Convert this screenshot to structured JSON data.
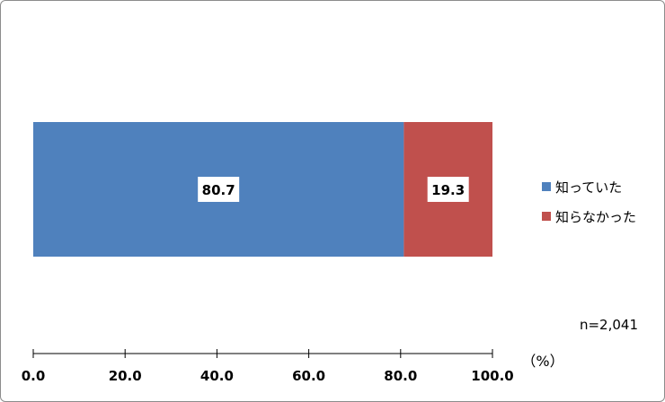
{
  "chart_data": {
    "type": "bar",
    "orientation": "horizontal",
    "stacked": true,
    "categories": [
      ""
    ],
    "series": [
      {
        "name": "知っていた",
        "values": [
          80.7
        ],
        "color": "#4f81bd",
        "label": "80.7"
      },
      {
        "name": "知らなかった",
        "values": [
          19.3
        ],
        "color": "#c0504d",
        "label": "19.3"
      }
    ],
    "xlim": [
      0,
      100
    ],
    "xticks": [
      "0.0",
      "20.0",
      "40.0",
      "60.0",
      "80.0",
      "100.0"
    ],
    "unit_label": "（%）",
    "note": "n=2,041",
    "legend_position": "right",
    "grid": false
  }
}
